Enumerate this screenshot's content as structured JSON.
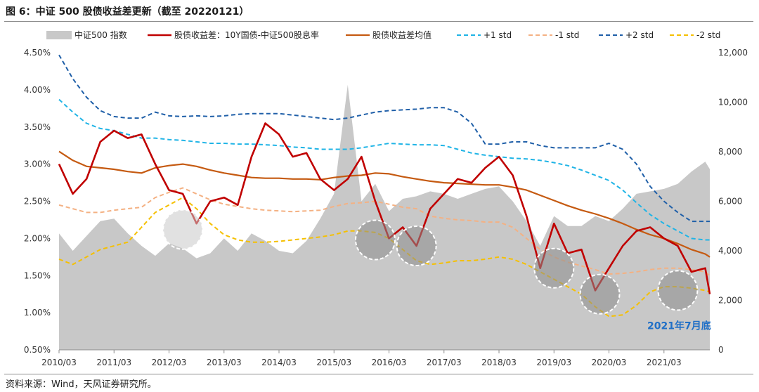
{
  "title": "图 6：中证 500 股债收益差更新（截至 20220121）",
  "source": "资料来源：Wind，天风证券研究所。",
  "chart_data": {
    "type": "line",
    "x_dates": [
      "2010/03",
      "2010/06",
      "2010/09",
      "2010/12",
      "2011/03",
      "2011/06",
      "2011/09",
      "2011/12",
      "2012/03",
      "2012/06",
      "2012/09",
      "2012/12",
      "2013/03",
      "2013/06",
      "2013/09",
      "2013/12",
      "2014/03",
      "2014/06",
      "2014/09",
      "2014/12",
      "2015/03",
      "2015/06",
      "2015/09",
      "2015/12",
      "2016/03",
      "2016/06",
      "2016/09",
      "2016/12",
      "2017/03",
      "2017/06",
      "2017/09",
      "2017/12",
      "2018/03",
      "2018/06",
      "2018/09",
      "2018/12",
      "2019/03",
      "2019/06",
      "2019/09",
      "2019/12",
      "2020/03",
      "2020/06",
      "2020/09",
      "2020/12",
      "2021/03",
      "2021/06",
      "2021/09",
      "2021/12",
      "2022/01"
    ],
    "x_ticks": [
      "2010/03",
      "2011/03",
      "2012/03",
      "2013/03",
      "2014/03",
      "2015/03",
      "2016/03",
      "2017/03",
      "2018/03",
      "2019/03",
      "2020/03",
      "2021/03"
    ],
    "y_left": {
      "min": 0.5,
      "max": 4.5,
      "ticks": [
        "0.50%",
        "1.00%",
        "1.50%",
        "2.00%",
        "2.50%",
        "3.00%",
        "3.50%",
        "4.00%",
        "4.50%"
      ]
    },
    "y_right": {
      "min": 0,
      "max": 12000,
      "ticks": [
        "0",
        "2,000",
        "4,000",
        "6,000",
        "8,000",
        "10,000",
        "12,000"
      ]
    },
    "colors": {
      "index": "#c8c8c8",
      "spread": "#c00000",
      "mean": "#c55a11",
      "p1": "#1fb4e6",
      "m1": "#f4b183",
      "p2": "#1f5fa8",
      "m2": "#f5c000",
      "circle": "#a6a6a6"
    },
    "series": [
      {
        "name": "中证500 指数",
        "axis": "right",
        "style": "area",
        "values": [
          4700,
          4000,
          4600,
          5200,
          5300,
          4700,
          4200,
          3800,
          4300,
          4100,
          3700,
          3900,
          4500,
          4000,
          4700,
          4400,
          4000,
          3900,
          4400,
          5300,
          6300,
          10700,
          6000,
          6700,
          5600,
          6100,
          6200,
          6400,
          6300,
          6100,
          6300,
          6500,
          6600,
          6000,
          5200,
          4200,
          5400,
          5000,
          5000,
          5400,
          5200,
          5700,
          6300,
          6400,
          6500,
          6700,
          7200,
          7600,
          7300
        ]
      },
      {
        "name": "股债收益差：10Y国债-中证500股息率",
        "axis": "left",
        "style": "line",
        "values": [
          3.0,
          2.6,
          2.8,
          3.3,
          3.45,
          3.35,
          3.4,
          3.0,
          2.65,
          2.6,
          2.2,
          2.5,
          2.55,
          2.45,
          3.1,
          3.55,
          3.4,
          3.1,
          3.15,
          2.8,
          2.65,
          2.8,
          3.1,
          2.5,
          2.0,
          2.15,
          1.9,
          2.4,
          2.6,
          2.8,
          2.75,
          2.95,
          3.1,
          2.85,
          2.3,
          1.6,
          2.2,
          1.8,
          1.85,
          1.3,
          1.6,
          1.9,
          2.1,
          2.15,
          2.0,
          1.9,
          1.55,
          1.6,
          1.25
        ]
      },
      {
        "name": "股债收益差均值",
        "axis": "left",
        "style": "line",
        "values": [
          3.17,
          3.05,
          2.97,
          2.95,
          2.93,
          2.9,
          2.88,
          2.95,
          2.98,
          3.0,
          2.97,
          2.92,
          2.88,
          2.85,
          2.82,
          2.81,
          2.81,
          2.8,
          2.8,
          2.79,
          2.82,
          2.84,
          2.85,
          2.88,
          2.87,
          2.83,
          2.8,
          2.77,
          2.75,
          2.74,
          2.73,
          2.72,
          2.72,
          2.69,
          2.65,
          2.58,
          2.51,
          2.44,
          2.38,
          2.33,
          2.27,
          2.2,
          2.12,
          2.05,
          2.0,
          1.93,
          1.85,
          1.79,
          1.75
        ]
      },
      {
        "name": "+1 std",
        "axis": "left",
        "style": "dash",
        "values": [
          3.87,
          3.7,
          3.55,
          3.48,
          3.45,
          3.4,
          3.35,
          3.35,
          3.33,
          3.32,
          3.3,
          3.28,
          3.28,
          3.27,
          3.27,
          3.26,
          3.25,
          3.23,
          3.22,
          3.2,
          3.2,
          3.2,
          3.22,
          3.25,
          3.28,
          3.27,
          3.26,
          3.26,
          3.25,
          3.2,
          3.15,
          3.12,
          3.1,
          3.08,
          3.07,
          3.05,
          3.02,
          2.98,
          2.92,
          2.85,
          2.78,
          2.65,
          2.48,
          2.32,
          2.2,
          2.1,
          2.0,
          1.98,
          1.98
        ]
      },
      {
        "name": "-1 std",
        "axis": "left",
        "style": "dash",
        "values": [
          2.45,
          2.4,
          2.35,
          2.35,
          2.38,
          2.4,
          2.42,
          2.55,
          2.62,
          2.68,
          2.6,
          2.52,
          2.46,
          2.43,
          2.4,
          2.38,
          2.37,
          2.36,
          2.37,
          2.38,
          2.43,
          2.47,
          2.48,
          2.5,
          2.46,
          2.42,
          2.4,
          2.3,
          2.27,
          2.25,
          2.24,
          2.22,
          2.22,
          2.15,
          2.0,
          1.85,
          1.75,
          1.68,
          1.63,
          1.58,
          1.52,
          1.53,
          1.55,
          1.58,
          1.6,
          1.6,
          1.58,
          1.55,
          1.5
        ]
      },
      {
        "name": "+2 std",
        "axis": "left",
        "style": "dash",
        "values": [
          4.47,
          4.15,
          3.9,
          3.72,
          3.64,
          3.62,
          3.62,
          3.7,
          3.65,
          3.64,
          3.65,
          3.64,
          3.65,
          3.67,
          3.68,
          3.68,
          3.68,
          3.66,
          3.64,
          3.62,
          3.6,
          3.62,
          3.66,
          3.7,
          3.72,
          3.73,
          3.74,
          3.76,
          3.76,
          3.7,
          3.55,
          3.27,
          3.27,
          3.3,
          3.3,
          3.25,
          3.22,
          3.22,
          3.22,
          3.22,
          3.28,
          3.2,
          3.0,
          2.7,
          2.5,
          2.35,
          2.23,
          2.23,
          2.23
        ]
      },
      {
        "name": "-2 std",
        "axis": "left",
        "style": "dash",
        "values": [
          1.72,
          1.65,
          1.75,
          1.85,
          1.9,
          1.95,
          2.15,
          2.35,
          2.45,
          2.55,
          2.4,
          2.2,
          2.05,
          1.98,
          1.95,
          1.95,
          1.96,
          1.98,
          2.0,
          2.02,
          2.05,
          2.1,
          2.1,
          2.08,
          2.0,
          1.85,
          1.7,
          1.65,
          1.67,
          1.7,
          1.7,
          1.72,
          1.75,
          1.72,
          1.65,
          1.55,
          1.45,
          1.35,
          1.25,
          1.08,
          0.95,
          0.97,
          1.1,
          1.28,
          1.35,
          1.35,
          1.33,
          1.3,
          1.28
        ]
      }
    ],
    "circles": [
      {
        "x": "2012/06",
        "y": 2.12,
        "style": "light"
      },
      {
        "x": "2015/12",
        "y": 1.98,
        "style": "dark"
      },
      {
        "x": "2016/09",
        "y": 1.9,
        "style": "dark"
      },
      {
        "x": "2019/03",
        "y": 1.6,
        "style": "dark"
      },
      {
        "x": "2020/01",
        "y": 1.25,
        "style": "dark"
      },
      {
        "x": "2021/06",
        "y": 1.3,
        "style": "dark"
      }
    ],
    "annotations": [
      {
        "text": "2021年7月底",
        "x": "2021/06",
        "y": 0.78
      }
    ],
    "legend_position": "top",
    "grid": false
  }
}
